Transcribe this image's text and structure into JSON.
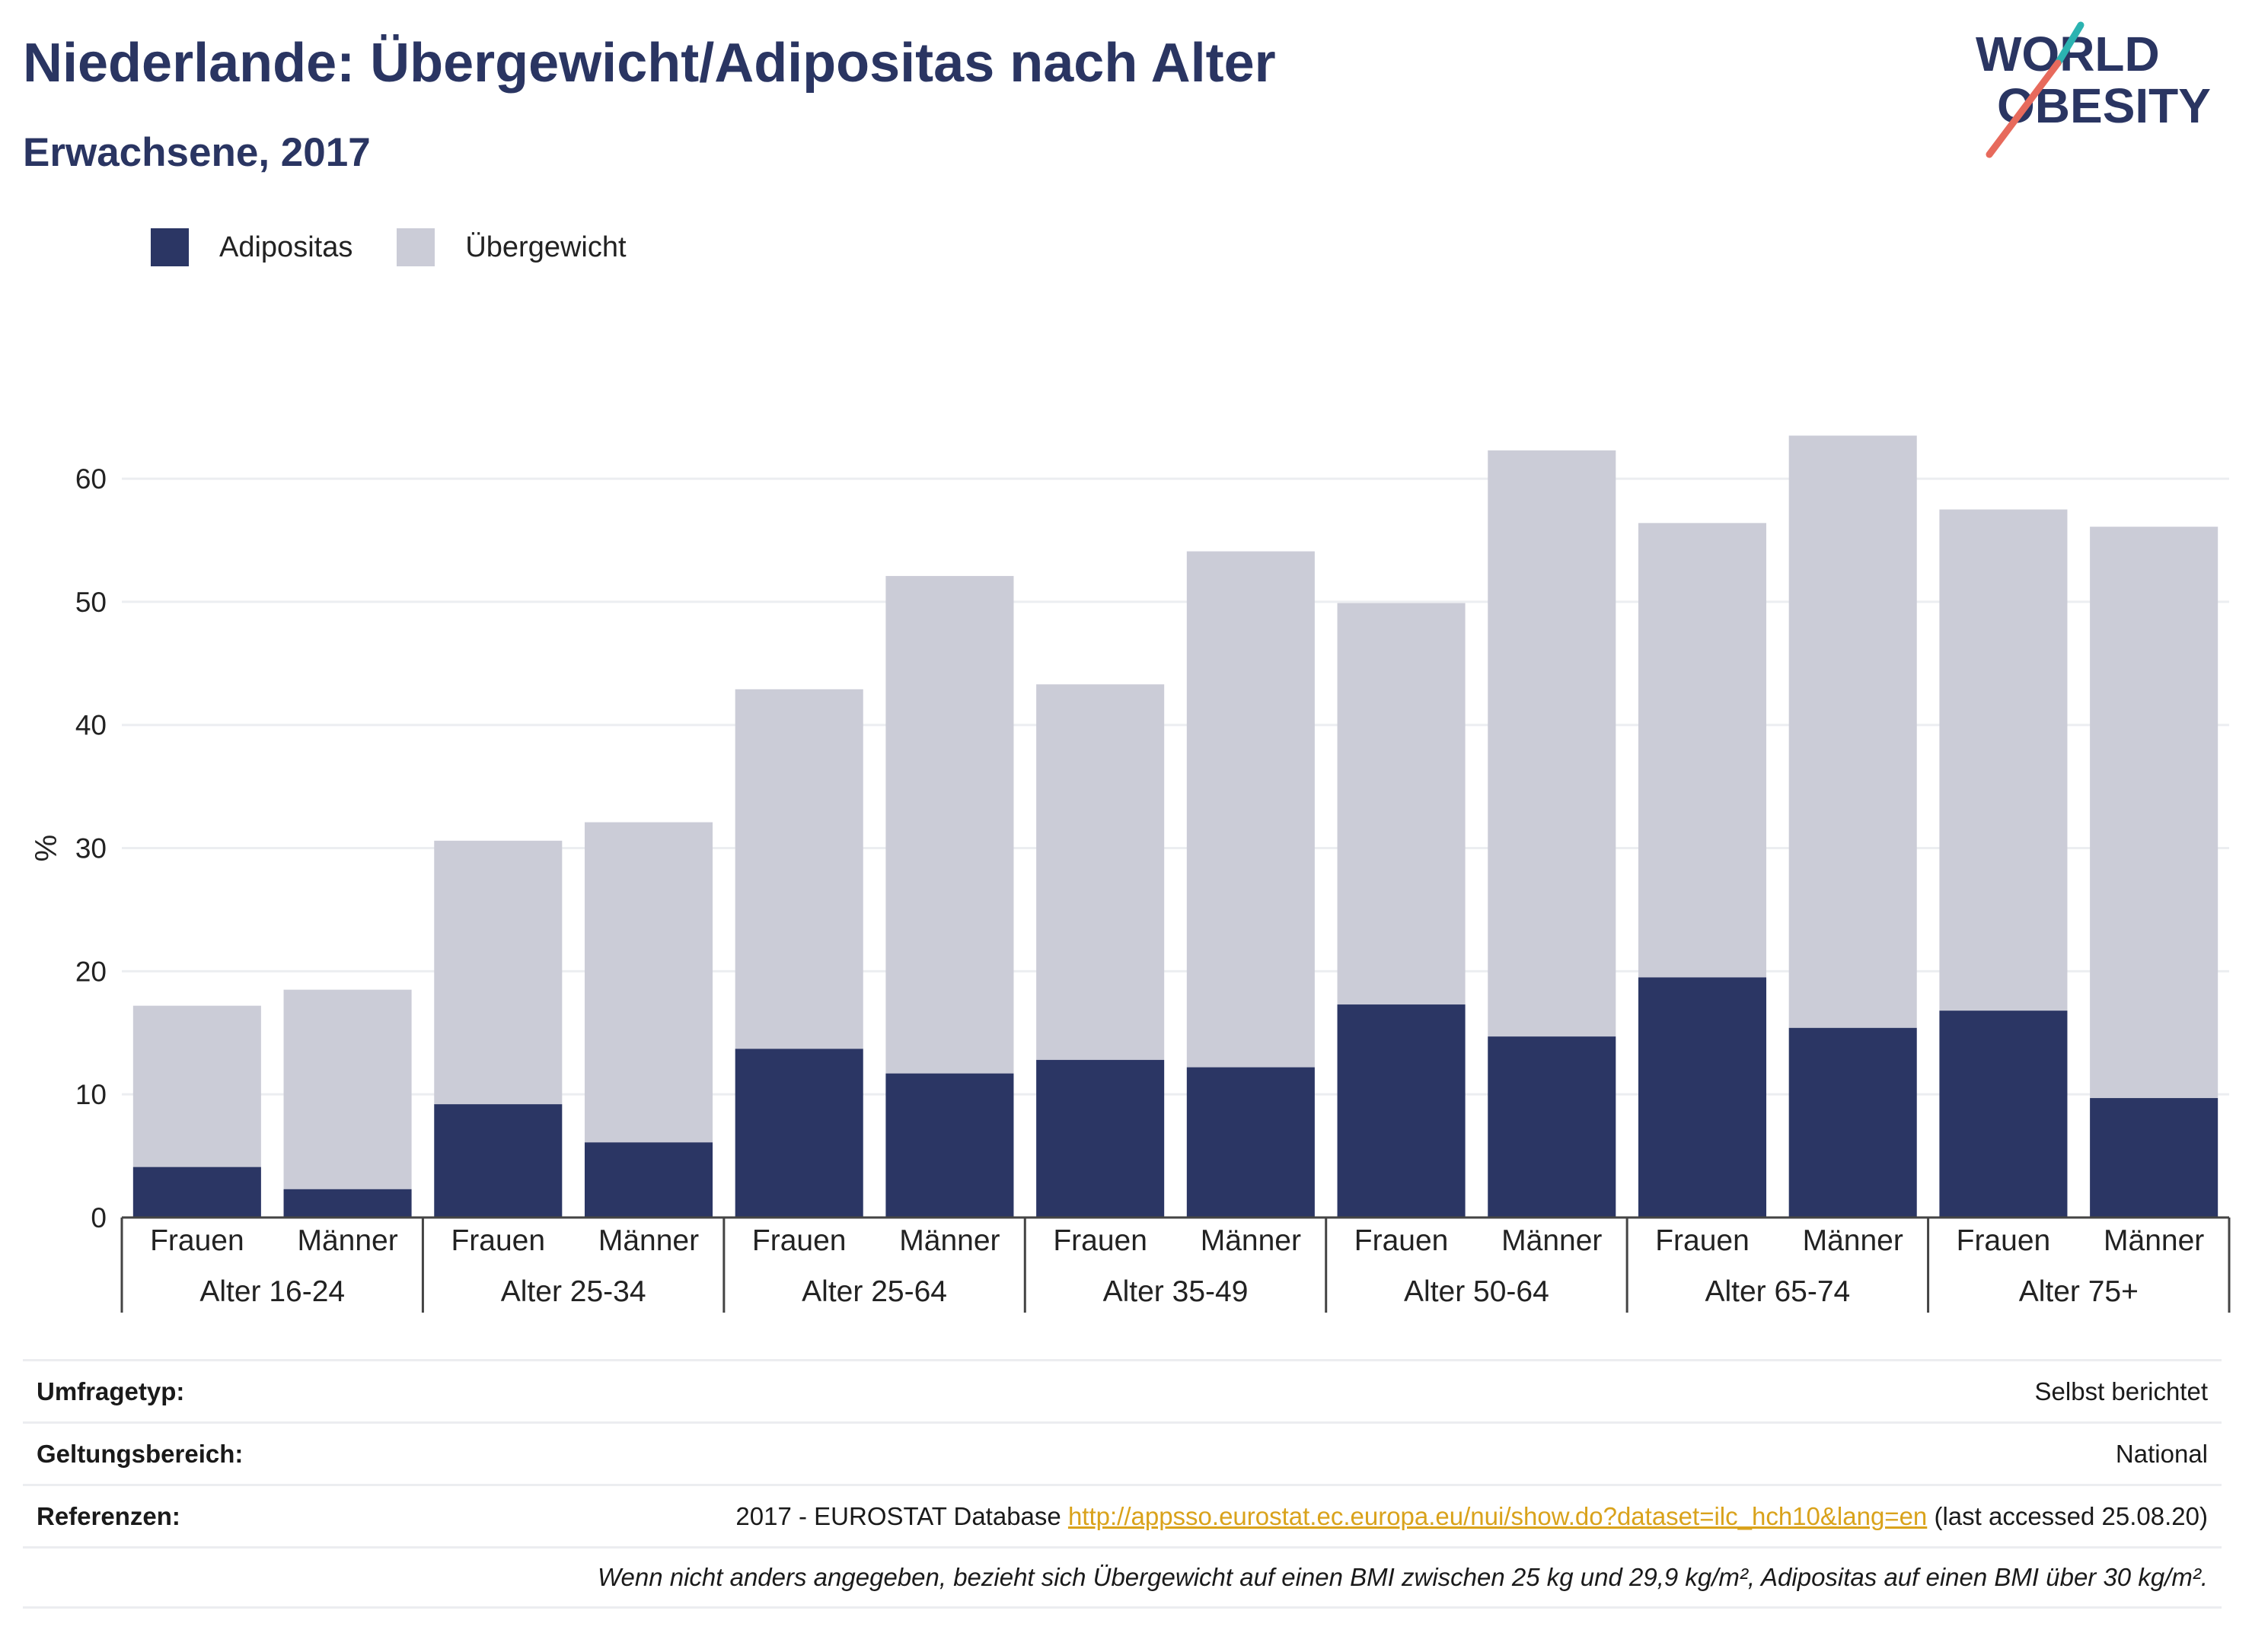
{
  "header": {
    "title": "Niederlande: Übergewicht/Adipositas nach Alter",
    "subtitle": "Erwachsene, 2017"
  },
  "logo": {
    "line1": "WORLD",
    "line2": "OBESITY",
    "icon": "world-obesity-logo"
  },
  "legend": [
    {
      "label": "Adipositas",
      "color": "#2b3664"
    },
    {
      "label": "Übergewicht",
      "color": "#cbccd7"
    }
  ],
  "chart_data": {
    "type": "bar",
    "stacked": true,
    "ylabel": "%",
    "ylim": [
      0,
      66
    ],
    "yticks": [
      0,
      10,
      20,
      30,
      40,
      50,
      60
    ],
    "grid": true,
    "legend_position": "top-left",
    "groups": [
      "Alter 16-24",
      "Alter 25-34",
      "Alter 25-64",
      "Alter 35-49",
      "Alter 50-64",
      "Alter 65-74",
      "Alter 75+"
    ],
    "subcategories": [
      "Frauen",
      "Männer"
    ],
    "series": [
      {
        "name": "Adipositas",
        "color": "#2b3664",
        "values": [
          4.1,
          2.3,
          9.2,
          6.1,
          13.7,
          11.7,
          12.8,
          12.2,
          17.3,
          14.7,
          19.5,
          15.4,
          16.8,
          9.7
        ]
      },
      {
        "name": "Übergewicht",
        "color": "#cbccd7",
        "values": [
          13.1,
          16.2,
          21.4,
          26.0,
          29.2,
          40.4,
          30.5,
          41.9,
          32.6,
          47.6,
          36.9,
          48.1,
          40.7,
          46.4
        ]
      }
    ]
  },
  "info": {
    "survey_label": "Umfragetyp:",
    "survey_value": "Selbst berichtet",
    "scope_label": "Geltungsbereich:",
    "scope_value": "National",
    "ref_label": "Referenzen:",
    "ref_prefix": "2017 - EUROSTAT Database ",
    "ref_link": "http://appsso.eurostat.ec.europa.eu/nui/show.do?dataset=ilc_hch10&lang=en",
    "ref_suffix": " (last accessed 25.08.20)",
    "note": "Wenn nicht anders angegeben, bezieht sich Übergewicht auf einen BMI zwischen 25 kg und 29,9 kg/m², Adipositas auf einen BMI über 30 kg/m²."
  }
}
